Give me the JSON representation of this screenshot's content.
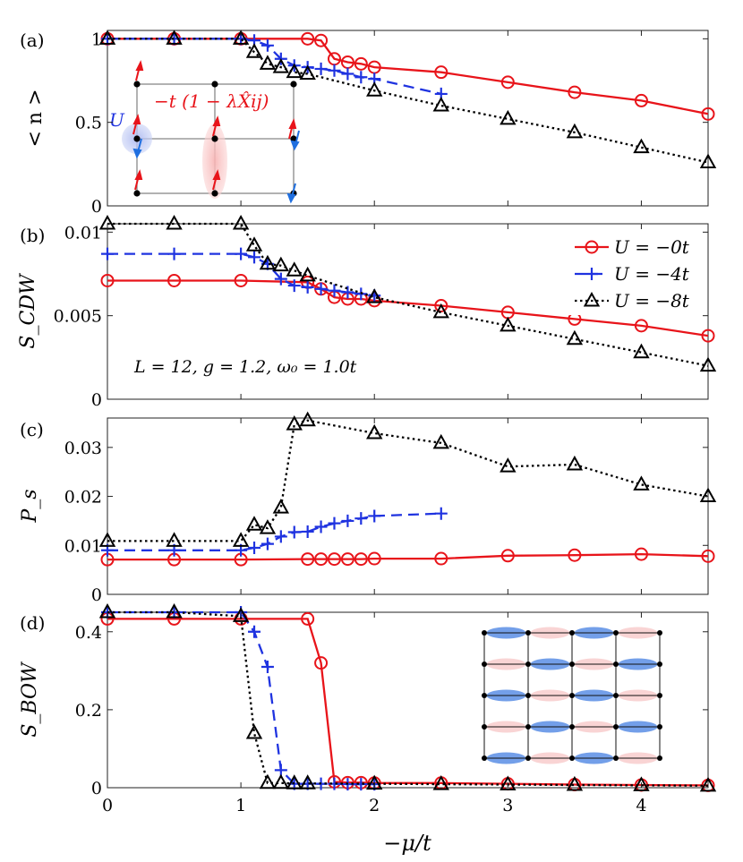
{
  "chart_data": {
    "type": "line",
    "shared_x": {
      "label": "−μ/t",
      "lim": [
        0,
        4.5
      ],
      "ticks": [
        0,
        1,
        2,
        3,
        4
      ],
      "tick_labels": [
        "0",
        "1",
        "2",
        "3",
        "4"
      ]
    },
    "legend": {
      "placement": "top-right of panel (b)",
      "entries": [
        "U = −0t",
        "U = −4t",
        "U = −8t"
      ]
    },
    "series_styles": [
      {
        "name": "U = −0t",
        "color": "#e8141a",
        "marker": "circle",
        "dash": "solid"
      },
      {
        "name": "U = −4t",
        "color": "#1f33e0",
        "marker": "plus",
        "dash": "dashed"
      },
      {
        "name": "U = −8t",
        "color": "#000000",
        "marker": "triangle",
        "dash": "dotted"
      }
    ],
    "panels": [
      {
        "id": "a",
        "label": "(a)",
        "ylabel": "< n >",
        "ylim": [
          0,
          1.05
        ],
        "yticks": [
          0,
          0.5,
          1
        ],
        "ytick_labels": [
          "0",
          "0.5",
          "1"
        ],
        "inset_annotations": [
          "U",
          "−t (1 − λX̂ij)"
        ],
        "series": [
          {
            "name": "U = −0t",
            "x": [
              0,
              0.5,
              1,
              1.5,
              1.6,
              1.7,
              1.8,
              1.9,
              2,
              2.5,
              3,
              3.5,
              4,
              4.5
            ],
            "values": [
              1,
              1,
              1,
              1,
              0.99,
              0.88,
              0.86,
              0.85,
              0.83,
              0.8,
              0.74,
              0.68,
              0.63,
              0.55
            ]
          },
          {
            "name": "U = −4t",
            "x": [
              0,
              0.5,
              1,
              1.1,
              1.2,
              1.3,
              1.4,
              1.5,
              1.6,
              1.7,
              1.8,
              1.9,
              2,
              2.5
            ],
            "values": [
              1,
              1,
              1,
              0.99,
              0.96,
              0.88,
              0.84,
              0.83,
              0.82,
              0.81,
              0.79,
              0.77,
              0.76,
              0.67
            ]
          },
          {
            "name": "U = −8t",
            "x": [
              0,
              0.5,
              1,
              1.1,
              1.2,
              1.3,
              1.4,
              1.5,
              2,
              2.5,
              3,
              3.5,
              4,
              4.5
            ],
            "values": [
              1,
              1,
              1,
              0.92,
              0.85,
              0.83,
              0.8,
              0.79,
              0.69,
              0.6,
              0.52,
              0.44,
              0.35,
              0.26
            ]
          }
        ]
      },
      {
        "id": "b",
        "label": "(b)",
        "ylabel": "S_CDW",
        "ylim": [
          0,
          0.0105
        ],
        "yticks": [
          0,
          0.005,
          0.01
        ],
        "ytick_labels": [
          "0",
          "0.005",
          "0.01"
        ],
        "annotation": "L = 12, g = 1.2, ω₀ = 1.0t",
        "series": [
          {
            "name": "U = −0t",
            "x": [
              0,
              0.5,
              1,
              1.5,
              1.6,
              1.7,
              1.8,
              1.9,
              2,
              2.5,
              3,
              3.5,
              4,
              4.5
            ],
            "values": [
              0.0071,
              0.0071,
              0.0071,
              0.007,
              0.0066,
              0.0061,
              0.006,
              0.006,
              0.0059,
              0.0056,
              0.0052,
              0.0048,
              0.0044,
              0.0038
            ]
          },
          {
            "name": "U = −4t",
            "x": [
              0,
              0.5,
              1,
              1.1,
              1.2,
              1.3,
              1.4,
              1.5,
              1.6,
              1.7,
              1.8,
              1.9,
              2
            ],
            "values": [
              0.0087,
              0.0087,
              0.0087,
              0.0085,
              0.0081,
              0.0072,
              0.0068,
              0.0067,
              0.0066,
              0.0065,
              0.0064,
              0.0063,
              0.0062
            ]
          },
          {
            "name": "U = −8t",
            "x": [
              0,
              0.5,
              1,
              1.1,
              1.2,
              1.3,
              1.4,
              1.5,
              2,
              2.5,
              3,
              3.5,
              4,
              4.5
            ],
            "values": [
              0.0105,
              0.0105,
              0.0105,
              0.0092,
              0.0081,
              0.008,
              0.0077,
              0.0074,
              0.0061,
              0.0052,
              0.0044,
              0.0036,
              0.0028,
              0.002
            ]
          }
        ]
      },
      {
        "id": "c",
        "label": "(c)",
        "ylabel": "P_s",
        "ylim": [
          0,
          0.036
        ],
        "yticks": [
          0,
          0.01,
          0.02,
          0.03
        ],
        "ytick_labels": [
          "0",
          "0.01",
          "0.02",
          "0.03"
        ],
        "series": [
          {
            "name": "U = −0t",
            "x": [
              0,
              0.5,
              1,
              1.5,
              1.6,
              1.7,
              1.8,
              1.9,
              2,
              2.5,
              3,
              3.5,
              4,
              4.5
            ],
            "values": [
              0.0071,
              0.0071,
              0.0071,
              0.0072,
              0.0072,
              0.0072,
              0.0072,
              0.0072,
              0.0073,
              0.0073,
              0.0079,
              0.008,
              0.0082,
              0.0078
            ]
          },
          {
            "name": "U = −4t",
            "x": [
              0,
              0.5,
              1,
              1.1,
              1.2,
              1.3,
              1.4,
              1.5,
              1.6,
              1.7,
              1.8,
              1.9,
              2,
              2.5
            ],
            "values": [
              0.009,
              0.009,
              0.009,
              0.0095,
              0.0103,
              0.0118,
              0.0127,
              0.0128,
              0.0138,
              0.0145,
              0.015,
              0.0155,
              0.016,
              0.0165
            ]
          },
          {
            "name": "U = −8t",
            "x": [
              0,
              0.5,
              1,
              1.1,
              1.2,
              1.3,
              1.4,
              1.5,
              2,
              2.5,
              3,
              3.5,
              4,
              4.5
            ],
            "values": [
              0.0109,
              0.0109,
              0.0109,
              0.0142,
              0.0135,
              0.0177,
              0.0347,
              0.0355,
              0.0329,
              0.0309,
              0.0261,
              0.0265,
              0.0224,
              0.02
            ]
          }
        ]
      },
      {
        "id": "d",
        "label": "(d)",
        "ylabel": "S_BOW",
        "ylim": [
          0,
          0.45
        ],
        "yticks": [
          0,
          0.2,
          0.4
        ],
        "ytick_labels": [
          "0",
          "0.2",
          "0.4"
        ],
        "series": [
          {
            "name": "U = −0t",
            "x": [
              0,
              0.5,
              1,
              1.5,
              1.6,
              1.7,
              1.8,
              1.9,
              2,
              2.5,
              3,
              3.5,
              4,
              4.5
            ],
            "values": [
              0.433,
              0.433,
              0.433,
              0.433,
              0.32,
              0.015,
              0.013,
              0.013,
              0.012,
              0.012,
              0.01,
              0.008,
              0.007,
              0.006
            ]
          },
          {
            "name": "U = −4t",
            "x": [
              0,
              0.5,
              1,
              1.1,
              1.2,
              1.3,
              1.4,
              1.5,
              1.6,
              1.7,
              1.8,
              1.9,
              2
            ],
            "values": [
              0.45,
              0.45,
              0.45,
              0.4,
              0.31,
              0.045,
              0.01,
              0.01,
              0.01,
              0.01,
              0.009,
              0.009,
              0.009
            ]
          },
          {
            "name": "U = −8t",
            "x": [
              0,
              0.5,
              1,
              1.1,
              1.2,
              1.3,
              1.4,
              1.5,
              2,
              2.5,
              3,
              3.5,
              4,
              4.5
            ],
            "values": [
              0.45,
              0.45,
              0.44,
              0.14,
              0.012,
              0.012,
              0.011,
              0.011,
              0.01,
              0.009,
              0.008,
              0.007,
              0.006,
              0.005
            ]
          }
        ]
      }
    ]
  }
}
